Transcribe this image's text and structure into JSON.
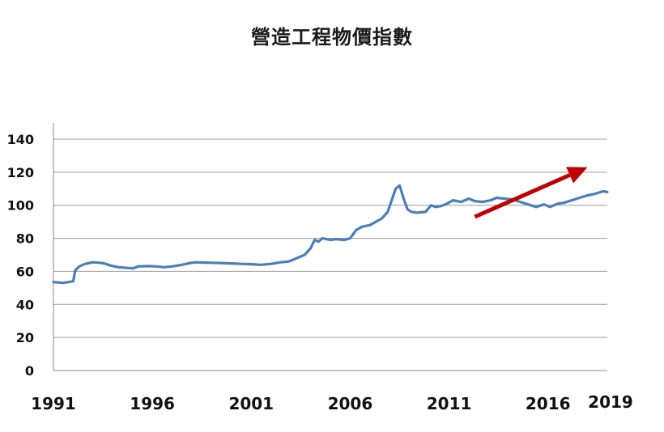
{
  "chart_data": {
    "type": "line",
    "title": "營造工程物價指數",
    "xlabel": "",
    "ylabel": "",
    "xlim": [
      1991.0,
      2019.0
    ],
    "ylim": [
      0,
      140
    ],
    "y_ticks": [
      0,
      20,
      40,
      60,
      80,
      100,
      120,
      140
    ],
    "x_tick_labels": [
      "1991",
      "1996",
      "2001",
      "2006",
      "2011",
      "2016",
      "2019"
    ],
    "x_tick_values": [
      1991,
      1996,
      2001,
      2006,
      2011,
      2016,
      2019
    ],
    "grid": "horizontal",
    "legend": "none",
    "series": [
      {
        "color": "#4a7ebb",
        "x": [
          1991.0,
          1991.5,
          1992.0,
          1992.1,
          1992.3,
          1992.6,
          1993.0,
          1993.5,
          1993.9,
          1994.3,
          1994.8,
          1995.0,
          1995.3,
          1995.8,
          1996.2,
          1996.6,
          1997.0,
          1997.5,
          1997.9,
          1998.2,
          1998.6,
          1999.0,
          1999.5,
          2000.0,
          2000.5,
          2001.0,
          2001.5,
          2002.0,
          2002.5,
          2002.9,
          2003.3,
          2003.7,
          2004.0,
          2004.2,
          2004.4,
          2004.6,
          2004.8,
          2005.0,
          2005.3,
          2005.7,
          2006.0,
          2006.3,
          2006.6,
          2007.0,
          2007.3,
          2007.6,
          2007.9,
          2008.1,
          2008.3,
          2008.5,
          2008.7,
          2008.9,
          2009.1,
          2009.4,
          2009.8,
          2010.1,
          2010.3,
          2010.6,
          2010.9,
          2011.2,
          2011.6,
          2012.0,
          2012.3,
          2012.7,
          2013.1,
          2013.4,
          2013.8,
          2014.2,
          2014.6,
          2015.0,
          2015.4,
          2015.8,
          2016.1,
          2016.5,
          2016.8,
          2017.2,
          2017.6,
          2018.0,
          2018.4,
          2018.8,
          2019.0
        ],
        "values": [
          53.5,
          53.0,
          54.0,
          60.5,
          63.0,
          64.5,
          65.5,
          65.0,
          63.5,
          62.5,
          62.0,
          61.8,
          63.0,
          63.2,
          63.0,
          62.5,
          63.0,
          64.0,
          65.0,
          65.5,
          65.3,
          65.2,
          65.0,
          64.8,
          64.5,
          64.3,
          64.0,
          64.5,
          65.5,
          66.0,
          68.0,
          70.0,
          74.0,
          79.0,
          78.0,
          80.0,
          79.5,
          79.0,
          79.5,
          79.0,
          80.0,
          85.0,
          87.0,
          88.0,
          90.0,
          92.0,
          96.0,
          103.0,
          110.0,
          112.0,
          104.0,
          97.5,
          96.0,
          95.5,
          96.0,
          100.0,
          99.0,
          99.5,
          101.0,
          103.0,
          102.0,
          104.0,
          102.5,
          102.0,
          103.0,
          104.5,
          104.0,
          103.5,
          102.0,
          100.5,
          99.0,
          100.5,
          99.0,
          101.0,
          101.5,
          103.0,
          104.5,
          106.0,
          107.0,
          108.5,
          108.0
        ]
      }
    ],
    "annotations": [
      {
        "type": "arrow",
        "color": "#c00000",
        "from": [
          2012.3,
          93
        ],
        "to": [
          2018.0,
          123
        ]
      }
    ]
  }
}
